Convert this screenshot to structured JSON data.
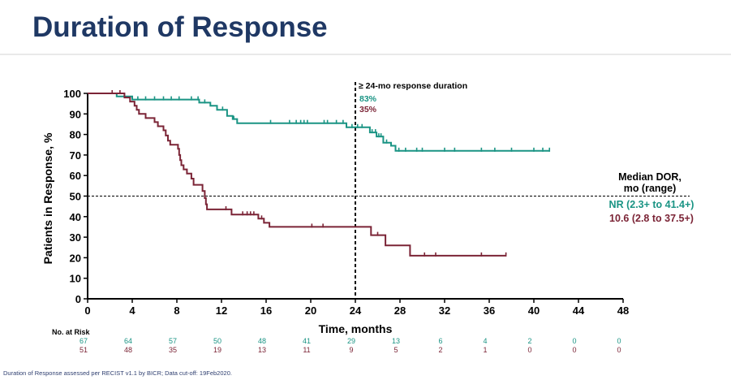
{
  "title": "Duration of Response",
  "footer": "Duration of Response assessed per RECIST v1.1 by BICR; Data cut-off: 19Feb2020.",
  "chart_data": {
    "type": "line",
    "step": true,
    "xlabel": "Time, months",
    "ylabel": "Patients in Response, %",
    "xlim": [
      0,
      48
    ],
    "ylim": [
      0,
      100
    ],
    "xticks": [
      0,
      4,
      8,
      12,
      16,
      20,
      24,
      28,
      32,
      36,
      40,
      44,
      48
    ],
    "yticks": [
      0,
      10,
      20,
      30,
      40,
      50,
      60,
      70,
      80,
      90,
      100
    ],
    "reference_line_y": 50,
    "reference_line_x": 24,
    "annotation": {
      "label": "≥ 24-mo response duration",
      "values": [
        "83%",
        "35%"
      ]
    },
    "median_label": [
      "Median DOR,",
      "mo (range)"
    ],
    "series": [
      {
        "color": "#1a9484",
        "median_text": "NR (2.3+ to 41.4+)",
        "points": [
          [
            0,
            100
          ],
          [
            2.6,
            100
          ],
          [
            2.6,
            98.5
          ],
          [
            4,
            98.5
          ],
          [
            4,
            97
          ],
          [
            10,
            97
          ],
          [
            10,
            95.5
          ],
          [
            11,
            95.5
          ],
          [
            11,
            94
          ],
          [
            11.6,
            94
          ],
          [
            11.6,
            92
          ],
          [
            12.5,
            92
          ],
          [
            12.5,
            89
          ],
          [
            13,
            89
          ],
          [
            13,
            87.5
          ],
          [
            13.4,
            87.5
          ],
          [
            13.4,
            85.5
          ],
          [
            23.2,
            85.5
          ],
          [
            23.2,
            83.5
          ],
          [
            25.3,
            83.5
          ],
          [
            25.3,
            81
          ],
          [
            25.9,
            81
          ],
          [
            25.9,
            79
          ],
          [
            26.5,
            79
          ],
          [
            26.5,
            76
          ],
          [
            27.2,
            76
          ],
          [
            27.2,
            74.5
          ],
          [
            27.6,
            74.5
          ],
          [
            27.6,
            72
          ],
          [
            41.4,
            72
          ]
        ],
        "censors": [
          [
            3.3,
            98.5
          ],
          [
            4.5,
            97
          ],
          [
            5.2,
            97
          ],
          [
            6,
            97
          ],
          [
            6.8,
            97
          ],
          [
            7.5,
            97
          ],
          [
            8.2,
            97
          ],
          [
            9.3,
            97
          ],
          [
            9.9,
            97
          ],
          [
            10.5,
            95.5
          ],
          [
            12.1,
            92
          ],
          [
            13.1,
            87.5
          ],
          [
            16.4,
            85.5
          ],
          [
            18.1,
            85.5
          ],
          [
            18.7,
            85.5
          ],
          [
            19.1,
            85.5
          ],
          [
            19.4,
            85.5
          ],
          [
            19.7,
            85.5
          ],
          [
            21.2,
            85.5
          ],
          [
            21.5,
            85.5
          ],
          [
            22.3,
            85.5
          ],
          [
            22.9,
            85.5
          ],
          [
            23.7,
            83.5
          ],
          [
            24.2,
            83.5
          ],
          [
            24.6,
            83.5
          ],
          [
            25.5,
            81
          ],
          [
            25.8,
            81
          ],
          [
            26.1,
            79
          ],
          [
            26.3,
            79
          ],
          [
            26.8,
            76
          ],
          [
            27.9,
            72
          ],
          [
            28.5,
            72
          ],
          [
            29.5,
            72
          ],
          [
            30,
            72
          ],
          [
            32,
            72
          ],
          [
            32.9,
            72
          ],
          [
            35.3,
            72
          ],
          [
            36.5,
            72
          ],
          [
            38,
            72
          ],
          [
            40,
            72
          ],
          [
            40.8,
            72
          ],
          [
            41.4,
            72
          ]
        ]
      },
      {
        "color": "#7b2436",
        "median_text": "10.6 (2.8 to 37.5+)",
        "points": [
          [
            0,
            100
          ],
          [
            3.3,
            100
          ],
          [
            3.3,
            98
          ],
          [
            3.8,
            98
          ],
          [
            3.8,
            96
          ],
          [
            4.2,
            96
          ],
          [
            4.2,
            94
          ],
          [
            4.4,
            94
          ],
          [
            4.4,
            92
          ],
          [
            4.6,
            92
          ],
          [
            4.6,
            90
          ],
          [
            5.2,
            90
          ],
          [
            5.2,
            88
          ],
          [
            6,
            88
          ],
          [
            6,
            86
          ],
          [
            6.3,
            86
          ],
          [
            6.3,
            84
          ],
          [
            6.8,
            84
          ],
          [
            6.8,
            82
          ],
          [
            7,
            82
          ],
          [
            7,
            79.5
          ],
          [
            7.2,
            79.5
          ],
          [
            7.2,
            77
          ],
          [
            7.4,
            77
          ],
          [
            7.4,
            75
          ],
          [
            8.1,
            75
          ],
          [
            8.1,
            73
          ],
          [
            8.2,
            73
          ],
          [
            8.2,
            70
          ],
          [
            8.3,
            70
          ],
          [
            8.3,
            67.5
          ],
          [
            8.4,
            67.5
          ],
          [
            8.4,
            65
          ],
          [
            8.6,
            65
          ],
          [
            8.6,
            63
          ],
          [
            8.9,
            63
          ],
          [
            8.9,
            61
          ],
          [
            9.3,
            61
          ],
          [
            9.3,
            58.5
          ],
          [
            9.5,
            58.5
          ],
          [
            9.5,
            55.5
          ],
          [
            10.3,
            55.5
          ],
          [
            10.3,
            52.5
          ],
          [
            10.5,
            52.5
          ],
          [
            10.5,
            49
          ],
          [
            10.6,
            49
          ],
          [
            10.6,
            46
          ],
          [
            10.7,
            46
          ],
          [
            10.7,
            43.5
          ],
          [
            12.9,
            43.5
          ],
          [
            12.9,
            41
          ],
          [
            15.3,
            41
          ],
          [
            15.3,
            39
          ],
          [
            15.8,
            39
          ],
          [
            15.8,
            37
          ],
          [
            16.3,
            37
          ],
          [
            16.3,
            35
          ],
          [
            25.4,
            35
          ],
          [
            25.4,
            31
          ],
          [
            26.7,
            31
          ],
          [
            26.7,
            26
          ],
          [
            28.9,
            26
          ],
          [
            28.9,
            21
          ],
          [
            37.5,
            21
          ]
        ],
        "censors": [
          [
            2.2,
            100
          ],
          [
            2.9,
            100
          ],
          [
            12.4,
            43.5
          ],
          [
            13.9,
            41
          ],
          [
            14.3,
            41
          ],
          [
            14.6,
            41
          ],
          [
            14.9,
            41
          ],
          [
            15.6,
            39
          ],
          [
            20.1,
            35
          ],
          [
            21.1,
            35
          ],
          [
            26,
            31
          ],
          [
            30.2,
            21
          ],
          [
            31.2,
            21
          ],
          [
            35.3,
            21
          ],
          [
            37.5,
            21
          ]
        ]
      }
    ],
    "at_risk": {
      "label": "No. at Risk",
      "times": [
        0,
        4,
        8,
        12,
        16,
        20,
        24,
        28,
        32,
        36,
        40,
        44,
        48
      ],
      "rows": [
        {
          "color": "#1a9484",
          "values": [
            67,
            64,
            57,
            50,
            48,
            41,
            29,
            13,
            6,
            4,
            2,
            0,
            0
          ]
        },
        {
          "color": "#7b2436",
          "values": [
            51,
            48,
            35,
            19,
            13,
            11,
            9,
            5,
            2,
            1,
            0,
            0,
            0
          ]
        }
      ]
    }
  }
}
